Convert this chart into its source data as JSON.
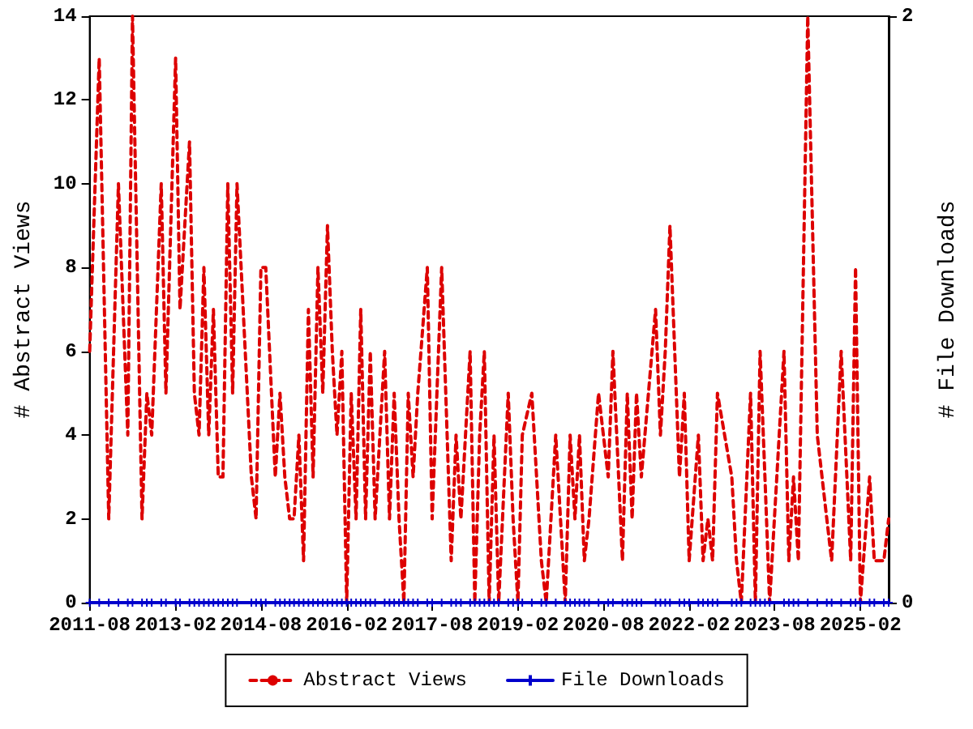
{
  "chart_data": {
    "type": "line",
    "ylabel": "# Abstract Views",
    "y2label": "# File Downloads",
    "x": [
      "2011-08",
      "2011-10",
      "2011-12",
      "2012-02",
      "2012-04",
      "2012-05",
      "2012-07",
      "2012-08",
      "2012-09",
      "2012-11",
      "2012-12",
      "2013-02",
      "2013-03",
      "2013-05",
      "2013-06",
      "2013-07",
      "2013-08",
      "2013-09",
      "2013-10",
      "2013-11",
      "2013-12",
      "2014-01",
      "2014-02",
      "2014-03",
      "2014-06",
      "2014-07",
      "2014-08",
      "2014-09",
      "2014-11",
      "2014-12",
      "2015-01",
      "2015-02",
      "2015-03",
      "2015-04",
      "2015-05",
      "2015-06",
      "2015-07",
      "2015-08",
      "2015-09",
      "2015-10",
      "2015-11",
      "2015-12",
      "2016-01",
      "2016-02",
      "2016-03",
      "2016-04",
      "2016-05",
      "2016-06",
      "2016-07",
      "2016-08",
      "2016-10",
      "2016-11",
      "2016-12",
      "2017-01",
      "2017-02",
      "2017-03",
      "2017-04",
      "2017-05",
      "2017-07",
      "2017-08",
      "2017-10",
      "2017-12",
      "2018-01",
      "2018-02",
      "2018-04",
      "2018-05",
      "2018-06",
      "2018-07",
      "2018-08",
      "2018-09",
      "2018-10",
      "2018-12",
      "2019-01",
      "2019-02",
      "2019-03",
      "2019-05",
      "2019-07",
      "2019-08",
      "2019-10",
      "2019-12",
      "2020-01",
      "2020-02",
      "2020-03",
      "2020-04",
      "2020-05",
      "2020-07",
      "2020-09",
      "2020-10",
      "2020-12",
      "2021-01",
      "2021-02",
      "2021-03",
      "2021-04",
      "2021-07",
      "2021-08",
      "2021-09",
      "2021-10",
      "2021-12",
      "2022-01",
      "2022-02",
      "2022-04",
      "2022-05",
      "2022-06",
      "2022-07",
      "2022-08",
      "2022-11",
      "2022-12",
      "2023-01",
      "2023-03",
      "2023-04",
      "2023-05",
      "2023-06",
      "2023-07",
      "2023-10",
      "2023-11",
      "2023-12",
      "2024-01",
      "2024-03",
      "2024-05",
      "2024-07",
      "2024-08",
      "2024-10",
      "2024-12",
      "2025-01",
      "2025-02",
      "2025-04",
      "2025-05",
      "2025-07",
      "2025-08"
    ],
    "series": [
      {
        "name": "Abstract Views",
        "color": "#dd0000",
        "line_style": "dashed",
        "values": [
          6,
          13,
          2,
          10,
          4,
          14,
          2,
          5,
          4,
          10,
          5,
          13,
          7,
          11,
          5,
          4,
          8,
          4,
          7,
          3,
          3,
          10,
          5,
          10,
          3,
          2,
          8,
          8,
          3,
          5,
          3,
          2,
          2,
          4,
          1,
          7,
          3,
          8,
          5,
          9,
          6,
          4,
          6,
          0,
          5,
          2,
          7,
          2,
          6,
          2,
          6,
          2,
          5,
          2,
          0,
          5,
          3,
          5,
          8,
          2,
          8,
          1,
          4,
          2,
          6,
          0,
          4,
          6,
          0,
          4,
          0,
          5,
          2,
          0,
          4,
          5,
          1,
          0,
          4,
          0,
          4,
          2,
          4,
          1,
          2,
          5,
          3,
          6,
          1,
          5,
          2,
          5,
          3,
          7,
          4,
          6,
          9,
          3,
          5,
          1,
          4,
          1,
          2,
          1,
          5,
          3,
          1,
          0,
          5,
          0,
          6,
          3,
          0,
          6,
          1,
          3,
          1,
          14,
          4,
          2,
          1,
          6,
          1,
          8,
          0,
          3,
          1,
          1,
          2
        ]
      },
      {
        "name": "File Downloads",
        "color": "#0000cc",
        "line_style": "solid",
        "marker": "cross",
        "axis": "y2",
        "values": [
          0,
          0,
          0,
          0,
          0,
          0,
          0,
          0,
          0,
          0,
          0,
          0,
          0,
          0,
          0,
          0,
          0,
          0,
          0,
          0,
          0,
          0,
          0,
          0,
          0,
          0,
          0,
          0,
          0,
          0,
          0,
          0,
          0,
          0,
          0,
          0,
          0,
          0,
          0,
          0,
          0,
          0,
          0,
          0,
          0,
          0,
          0,
          0,
          0,
          0,
          0,
          0,
          0,
          0,
          0,
          0,
          0,
          0,
          0,
          0,
          0,
          0,
          0,
          0,
          0,
          0,
          0,
          0,
          0,
          0,
          0,
          0,
          0,
          0,
          0,
          0,
          0,
          0,
          0,
          0,
          0,
          0,
          0,
          0,
          0,
          0,
          0,
          0,
          0,
          0,
          0,
          0,
          0,
          0,
          0,
          0,
          0,
          0,
          0,
          0,
          0,
          0,
          0,
          0,
          0,
          0,
          0,
          0,
          0,
          0,
          0,
          0,
          0,
          0,
          0,
          0,
          0,
          0,
          0,
          0,
          0,
          0,
          0,
          0,
          0,
          0,
          0,
          0,
          0
        ]
      }
    ],
    "xlim": [
      "2011-08",
      "2025-08"
    ],
    "xticks": [
      {
        "value": "2011-08",
        "label": "2011-08"
      },
      {
        "value": "2013-02",
        "label": "2013-02"
      },
      {
        "value": "2014-08",
        "label": "2014-08"
      },
      {
        "value": "2016-02",
        "label": "2016-02"
      },
      {
        "value": "2017-08",
        "label": "2017-08"
      },
      {
        "value": "2019-02",
        "label": "2019-02"
      },
      {
        "value": "2020-08",
        "label": "2020-08"
      },
      {
        "value": "2022-02",
        "label": "2022-02"
      },
      {
        "value": "2023-08",
        "label": "2023-08"
      },
      {
        "value": "2025-02",
        "label": "2025-02"
      }
    ],
    "ylim": [
      0,
      14
    ],
    "yticks": [
      0,
      2,
      4,
      6,
      8,
      10,
      12,
      14
    ],
    "y2lim": [
      0,
      2
    ],
    "y2ticks": [
      0,
      2
    ],
    "grid": false,
    "legend": "bottom"
  }
}
